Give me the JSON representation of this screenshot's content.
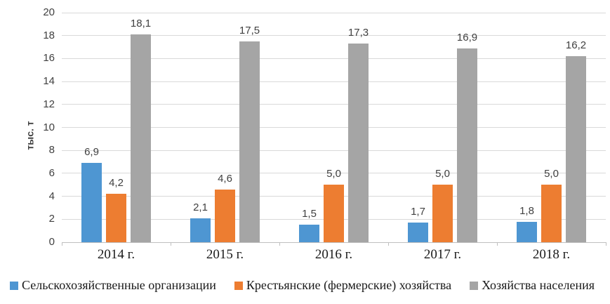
{
  "chart_data": {
    "type": "bar",
    "title": "",
    "xlabel": "",
    "ylabel": "тыс. т",
    "ylim": [
      0,
      20
    ],
    "ytick_step": 2,
    "yticks": [
      0,
      2,
      4,
      6,
      8,
      10,
      12,
      14,
      16,
      18,
      20
    ],
    "grid": true,
    "legend_position": "bottom",
    "categories": [
      "2014 г.",
      "2015 г.",
      "2016 г.",
      "2017 г.",
      "2018 г."
    ],
    "series": [
      {
        "name": "Сельскохозяйственные организации",
        "color": "#4e96d2",
        "values": [
          6.9,
          2.1,
          1.5,
          1.7,
          1.8
        ],
        "labels": [
          "6,9",
          "2,1",
          "1,5",
          "1,7",
          "1,8"
        ]
      },
      {
        "name": "Крестьянские (фермерские) хозяйства",
        "color": "#ed7d31",
        "values": [
          4.2,
          4.6,
          5.0,
          5.0,
          5.0
        ],
        "labels": [
          "4,2",
          "4,6",
          "5,0",
          "5,0",
          "5,0"
        ]
      },
      {
        "name": "Хозяйства населения",
        "color": "#a5a5a5",
        "values": [
          18.1,
          17.5,
          17.3,
          16.9,
          16.2
        ],
        "labels": [
          "18,1",
          "17,5",
          "17,3",
          "16,9",
          "16,2"
        ]
      }
    ],
    "colors": {
      "gridline": "#d9d9d9",
      "axis": "#bfbfbf",
      "tick_text": "#404040",
      "category_text": "#1a1a1a"
    }
  }
}
